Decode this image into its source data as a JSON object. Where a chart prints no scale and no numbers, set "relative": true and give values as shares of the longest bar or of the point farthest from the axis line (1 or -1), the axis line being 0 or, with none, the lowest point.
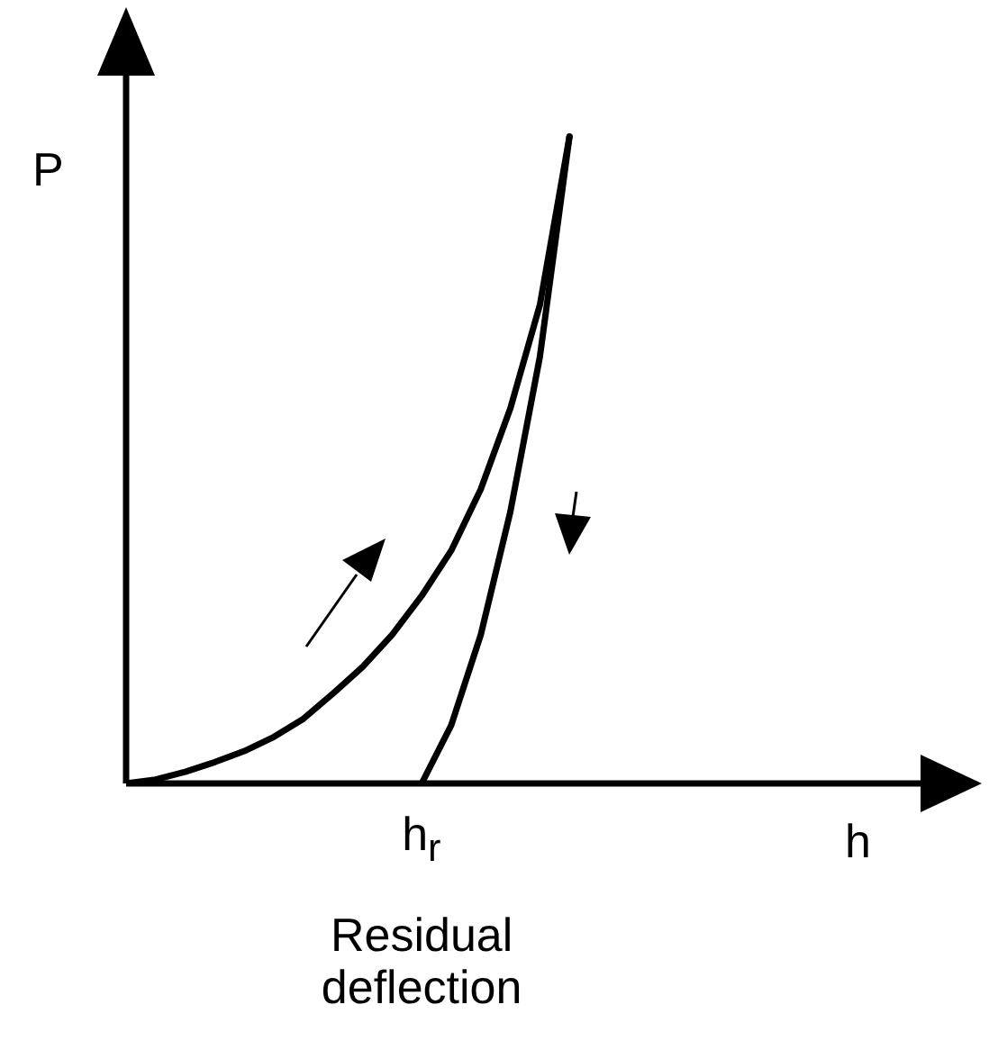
{
  "chart_data": {
    "type": "line",
    "relative": true,
    "xlabel": "h",
    "ylabel": "P",
    "tick_labels": false,
    "legend": false,
    "marker": "none",
    "line_style": "solid",
    "categories": [
      null,
      null,
      null,
      null,
      null,
      null,
      null,
      null,
      null,
      null,
      null,
      null,
      null,
      null,
      null,
      null,
      null,
      null,
      null,
      null,
      null,
      null,
      null,
      null,
      null,
      null,
      null,
      null
    ],
    "series": [
      {
        "color": "#000000",
        "values": [
          0,
          0.006,
          0.018,
          0.033,
          0.05,
          0.072,
          0.1,
          0.139,
          0.18,
          0.23,
          0.29,
          0.36,
          0.455,
          0.58,
          0.74,
          1,
          null,
          null,
          null,
          null,
          null,
          null,
          null,
          null,
          null,
          null,
          null,
          null
        ]
      },
      {
        "color": "#000000",
        "values": [
          null,
          null,
          null,
          null,
          null,
          null,
          null,
          null,
          null,
          null,
          0,
          0.09,
          0.23,
          0.42,
          0.66,
          1,
          null,
          null,
          null,
          null,
          null,
          null,
          null,
          null,
          null,
          null,
          null,
          null
        ]
      }
    ],
    "annotations": [
      "h$_{r}$",
      "Residual deflection"
    ]
  }
}
